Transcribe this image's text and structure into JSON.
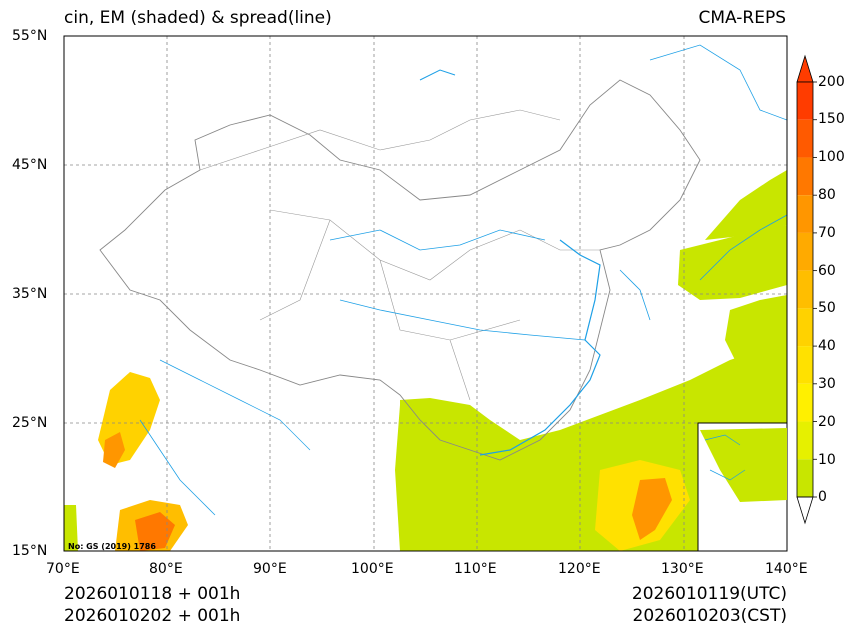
{
  "title_left": "cin, EM (shaded) & spread(line)",
  "title_right": "CMA-REPS",
  "lat_labels": [
    "55°N",
    "45°N",
    "35°N",
    "25°N",
    "15°N"
  ],
  "lon_labels": [
    "70°E",
    "80°E",
    "90°E",
    "100°E",
    "110°E",
    "120°E",
    "130°E",
    "140°E"
  ],
  "colorbar": {
    "labels": [
      "200",
      "150",
      "100",
      "80",
      "70",
      "60",
      "50",
      "40",
      "30",
      "20",
      "10",
      "0"
    ],
    "colors": [
      "#ff3c00",
      "#ff5a00",
      "#ff7800",
      "#ff9600",
      "#ffaa00",
      "#ffbe00",
      "#ffd200",
      "#ffe100",
      "#fff000",
      "#e6f000",
      "#c8e600"
    ]
  },
  "stamp": "No: GS (2019) 1786",
  "footer": {
    "init_utc": "2026010118  +  001h",
    "init_cst": "2026010202  +  001h",
    "valid_utc": "2026010119(UTC)",
    "valid_cst": "2026010203(CST)"
  },
  "colors": {
    "shade_low": "#c8e600",
    "shade_mid": "#ffd200",
    "shade_high": "#ff7800",
    "coast": "#1ea0e6",
    "border": "#888888"
  }
}
